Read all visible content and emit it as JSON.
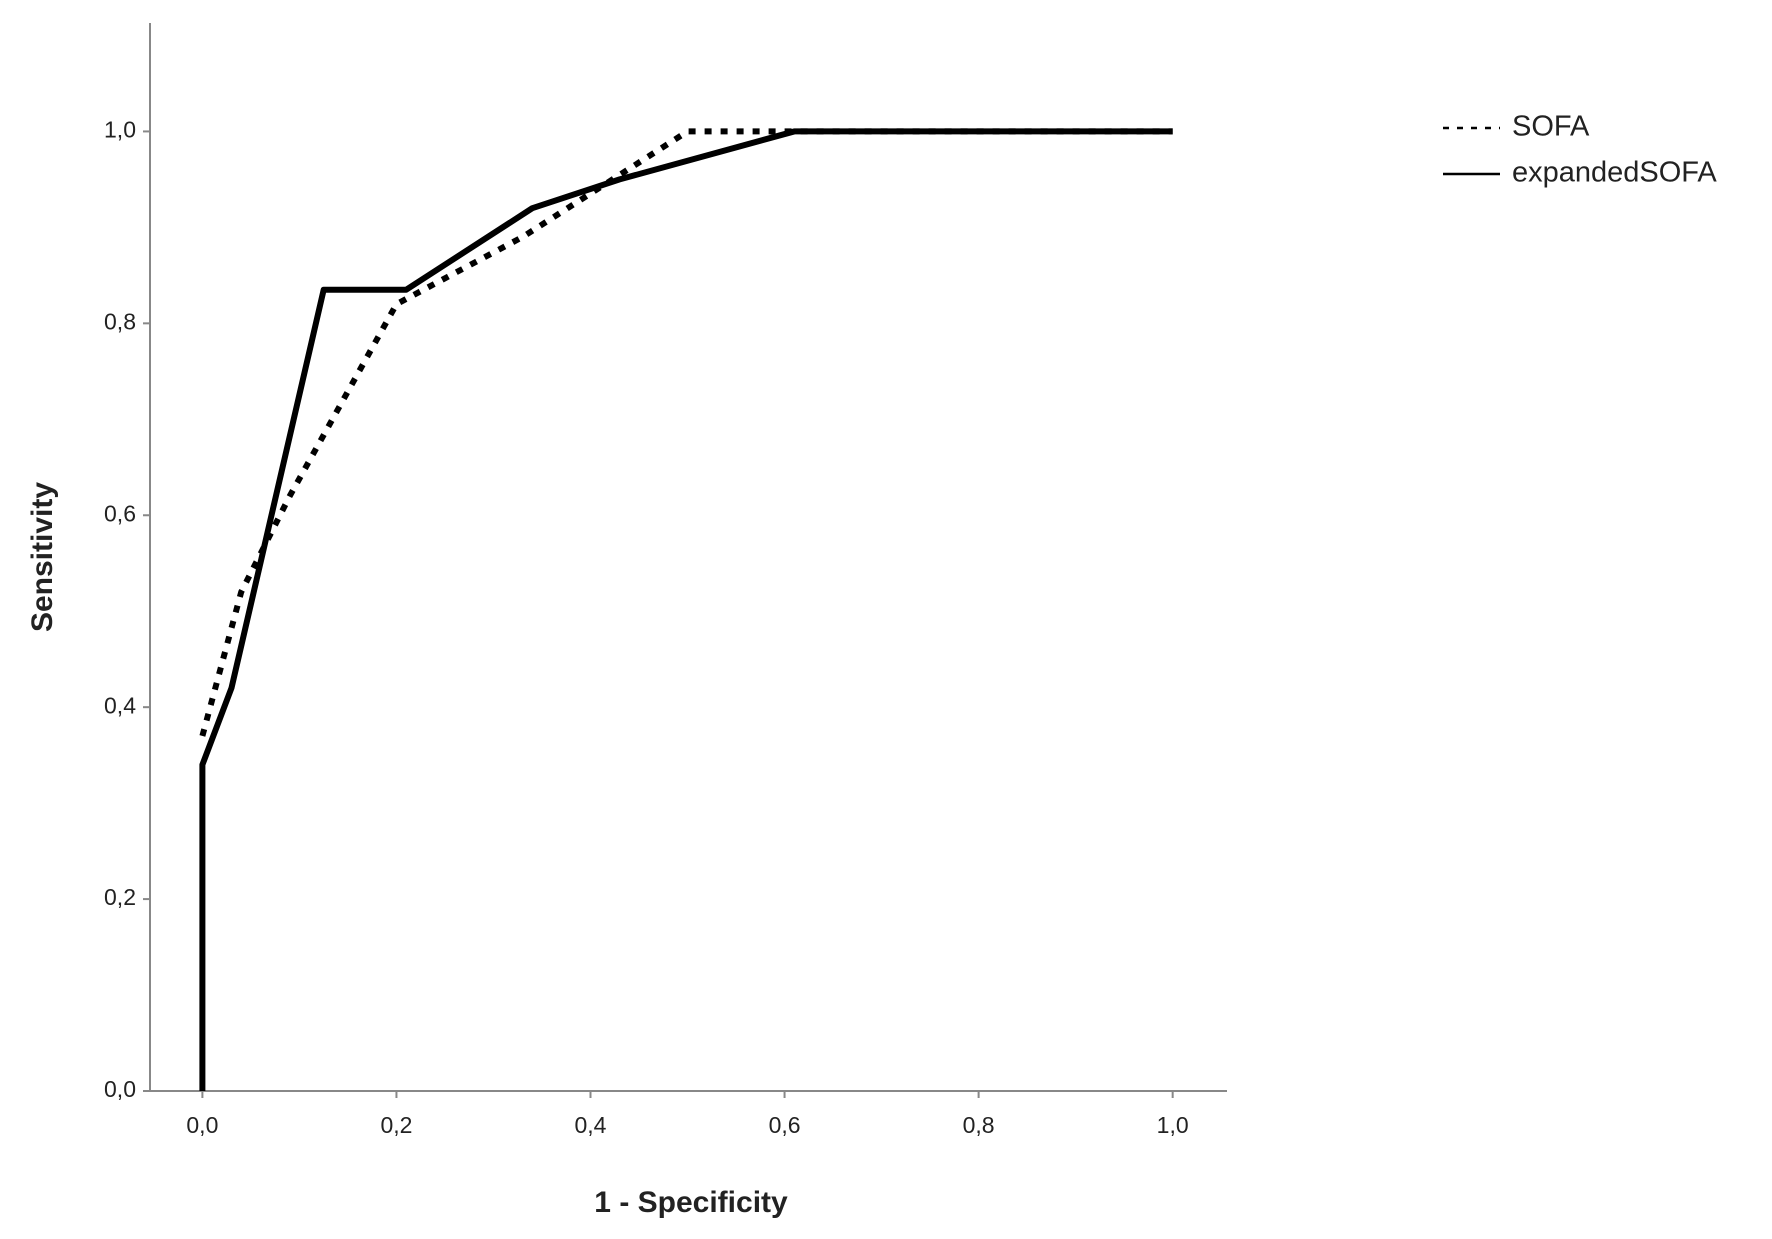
{
  "chart_data": {
    "type": "line",
    "x_label": "1 - Specificity",
    "y_label": "Sensitivity",
    "xlim": [
      -0.054,
      1.056
    ],
    "ylim": [
      0,
      1.113
    ],
    "xticks": [
      {
        "value": 0,
        "label": "0,0"
      },
      {
        "value": 0.2,
        "label": "0,2"
      },
      {
        "value": 0.4,
        "label": "0,4"
      },
      {
        "value": 0.6,
        "label": "0,6"
      },
      {
        "value": 0.8,
        "label": "0,8"
      },
      {
        "value": 1,
        "label": "1,0"
      }
    ],
    "yticks": [
      {
        "value": 0,
        "label": "0,0"
      },
      {
        "value": 0.2,
        "label": "0,2"
      },
      {
        "value": 0.4,
        "label": "0,4"
      },
      {
        "value": 0.6,
        "label": "0,6"
      },
      {
        "value": 0.8,
        "label": "0,8"
      },
      {
        "value": 1,
        "label": "1,0"
      }
    ],
    "series": [
      {
        "name": "SOFA",
        "color": "#000000",
        "dash": "dotted",
        "x": [
          0,
          0.04,
          0.09,
          0.2,
          0.33,
          0.5,
          1.0
        ],
        "values": [
          0.37,
          0.52,
          0.62,
          0.82,
          0.89,
          1.0,
          1.0
        ]
      },
      {
        "name": "expandedSOFA",
        "color": "#000000",
        "dash": "solid",
        "x": [
          0,
          0,
          0.03,
          0.125,
          0.21,
          0.34,
          0.43,
          0.61,
          1.0
        ],
        "values": [
          0,
          0.34,
          0.42,
          0.835,
          0.835,
          0.92,
          0.95,
          1.0,
          1.0
        ]
      }
    ]
  }
}
